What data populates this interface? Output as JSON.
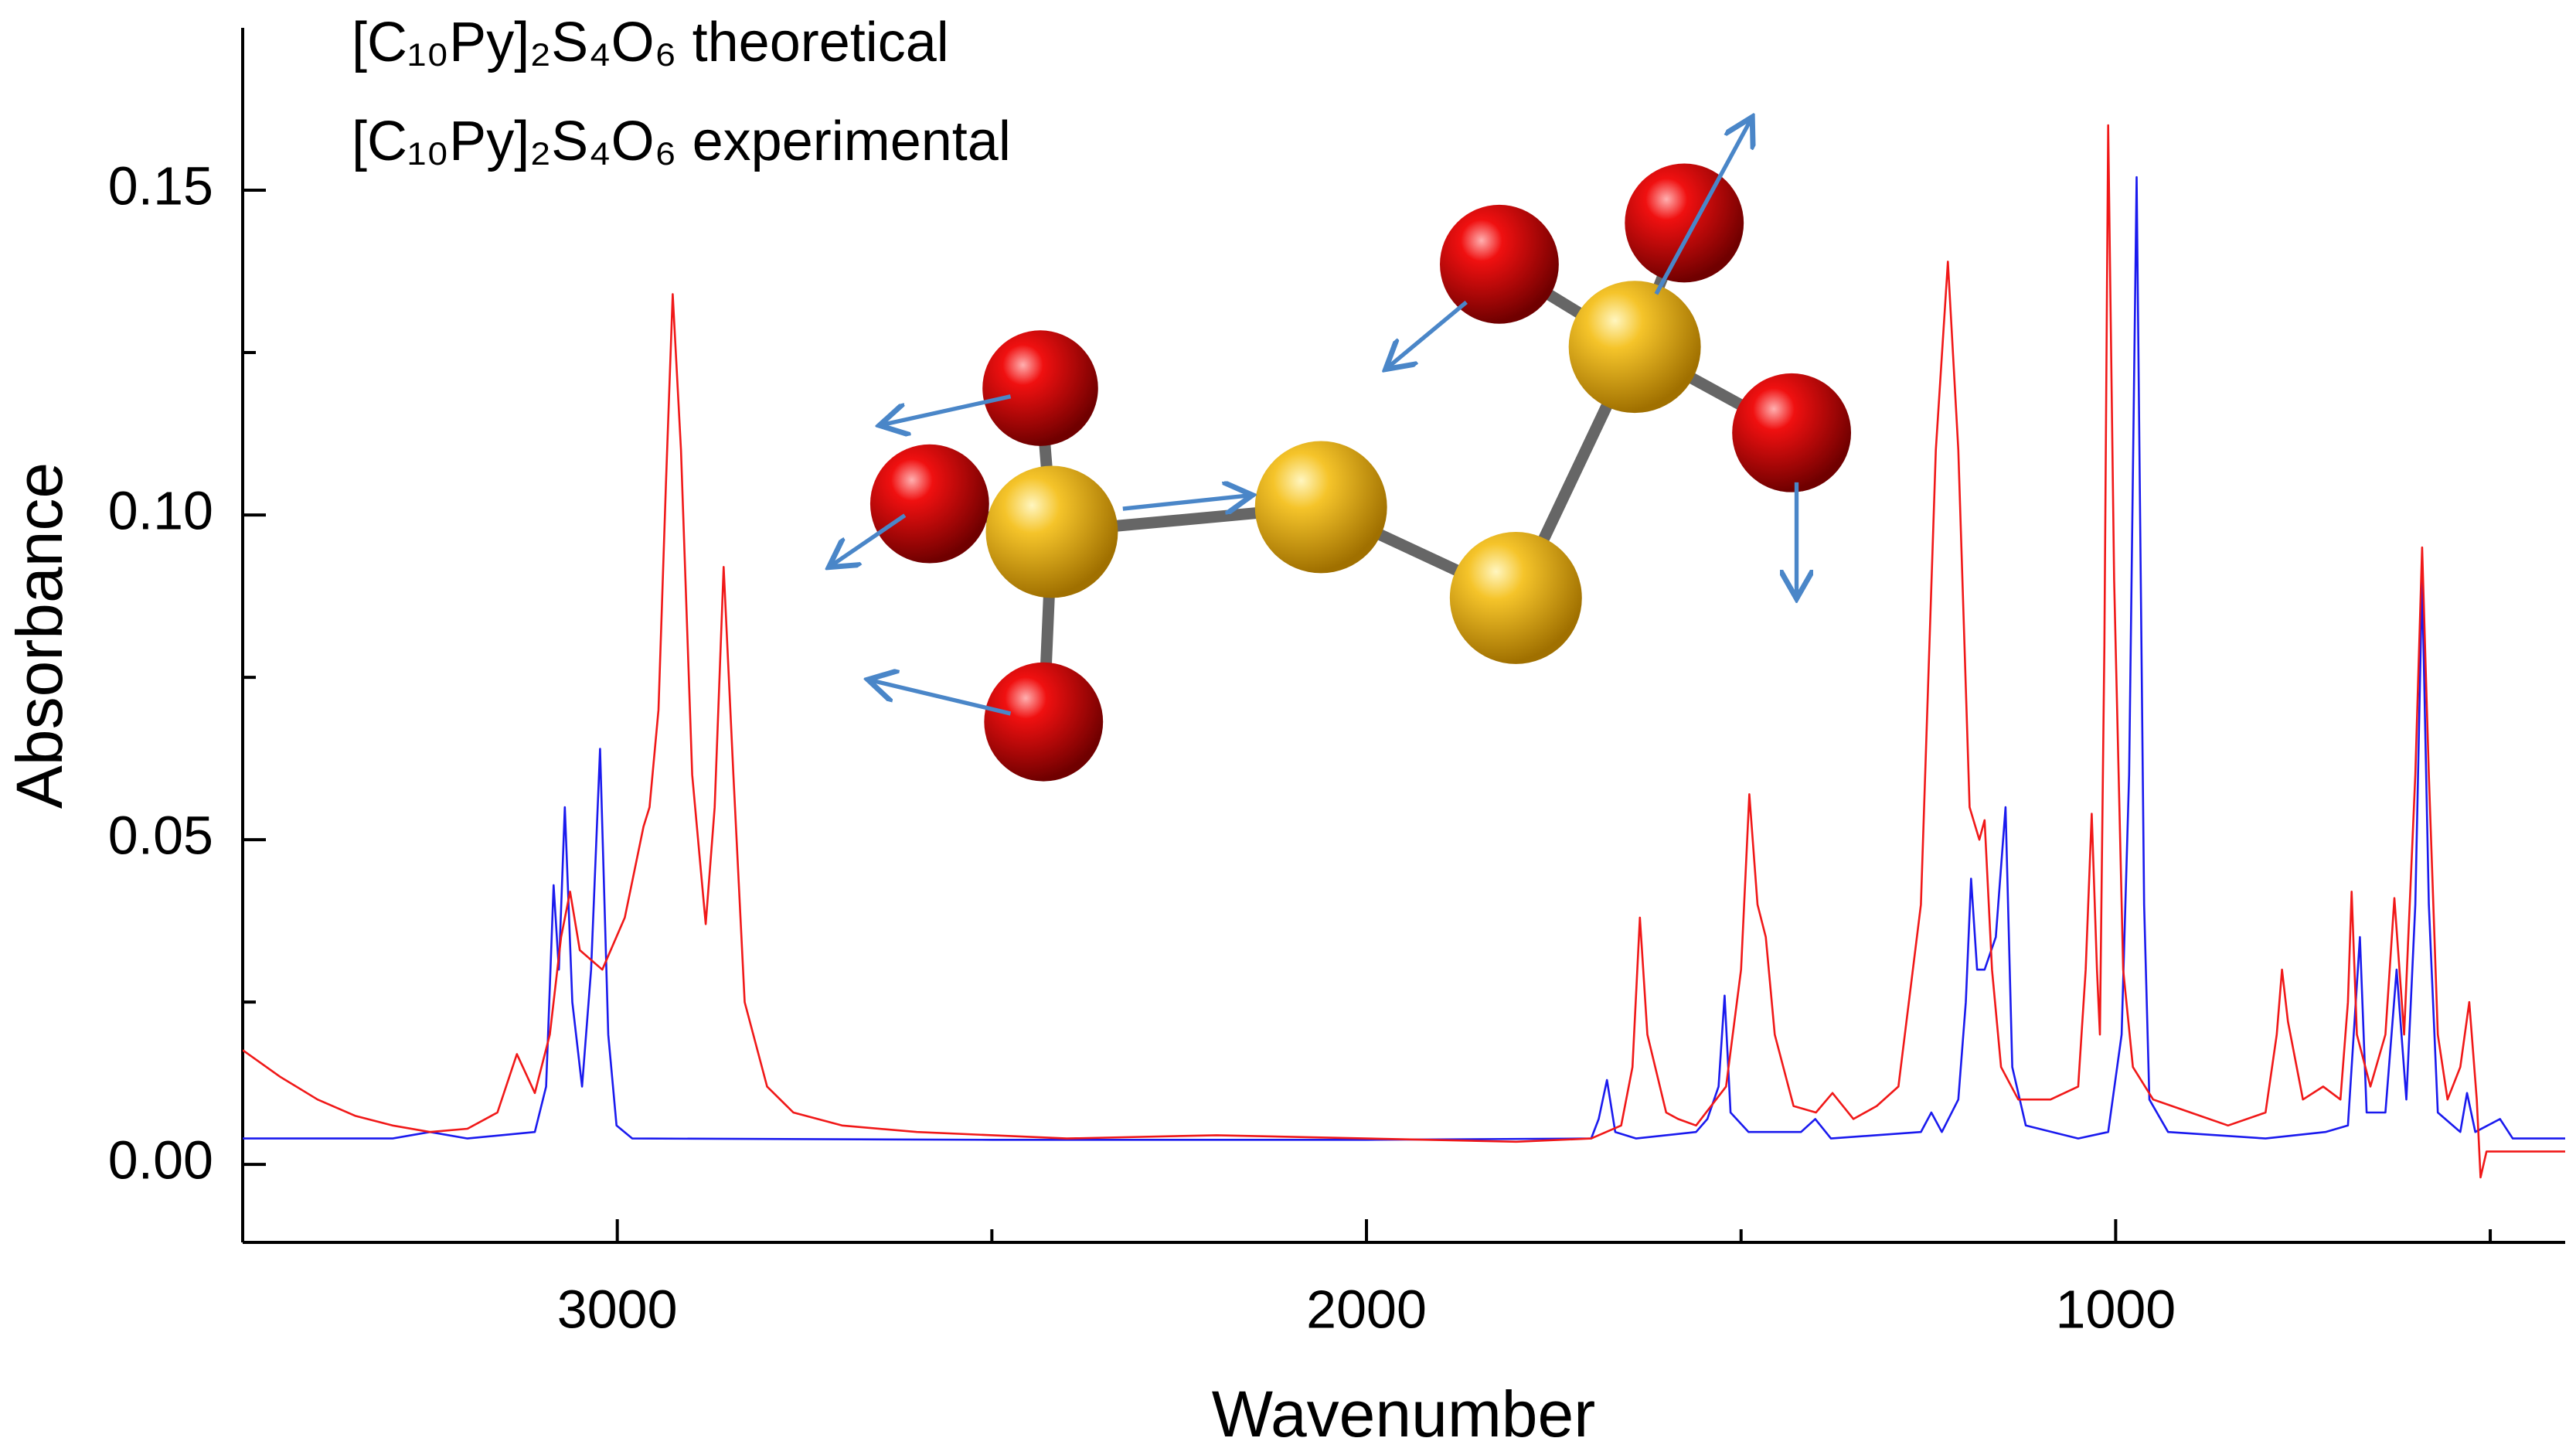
{
  "chart_data": {
    "type": "line",
    "x_label": "Wavenumber",
    "y_label": "Absorbance",
    "xlim": [
      3500,
      400
    ],
    "xticks": [
      3000,
      2000,
      1000
    ],
    "xminor": [
      2500,
      1500,
      500
    ],
    "ylim": [
      -0.012,
      0.175
    ],
    "yticks": [
      {
        "value": 0,
        "label": "0.00"
      },
      0.05,
      {
        "value": 0.1,
        "label": "0.10"
      },
      0.15
    ],
    "yminor": [
      0.025,
      0.075,
      0.125
    ],
    "series": [
      {
        "name": "[C₁₀Py]₂S₄O₆ theoretical",
        "color": "#1a1aee",
        "label_color": "#1f6fc1",
        "x": [
          3500,
          3300,
          3250,
          3200,
          3110,
          3095,
          3085,
          3078,
          3070,
          3060,
          3047,
          3035,
          3023,
          3012,
          3001,
          2980,
          2500,
          2000,
          1700,
          1690,
          1679,
          1668,
          1640,
          1560,
          1545,
          1530,
          1522,
          1514,
          1490,
          1420,
          1401,
          1380,
          1260,
          1246,
          1232,
          1210,
          1200,
          1193,
          1185,
          1175,
          1160,
          1147,
          1138,
          1120,
          1050,
          1010,
          992,
          982,
          972,
          962,
          955,
          930,
          800,
          720,
          690,
          674,
          665,
          640,
          625,
          612,
          600,
          591,
          582,
          570,
          540,
          531,
          520,
          487,
          470,
          400
        ],
        "values": [
          0.004,
          0.004,
          0.005,
          0.004,
          0.005,
          0.012,
          0.043,
          0.03,
          0.055,
          0.025,
          0.012,
          0.03,
          0.064,
          0.02,
          0.006,
          0.004,
          0.0038,
          0.0038,
          0.004,
          0.007,
          0.013,
          0.005,
          0.004,
          0.005,
          0.007,
          0.012,
          0.026,
          0.008,
          0.005,
          0.005,
          0.007,
          0.004,
          0.005,
          0.008,
          0.005,
          0.01,
          0.025,
          0.044,
          0.03,
          0.03,
          0.035,
          0.055,
          0.015,
          0.006,
          0.004,
          0.005,
          0.02,
          0.06,
          0.152,
          0.04,
          0.01,
          0.005,
          0.004,
          0.005,
          0.006,
          0.035,
          0.008,
          0.008,
          0.03,
          0.01,
          0.04,
          0.09,
          0.04,
          0.008,
          0.005,
          0.011,
          0.005,
          0.007,
          0.004,
          0.004
        ]
      },
      {
        "name": "[C₁₀Py]₂S₄O₆ experimental",
        "color": "#f01818",
        "label_color": "#e8141b",
        "x": [
          3500,
          3450,
          3400,
          3350,
          3300,
          3250,
          3200,
          3160,
          3134,
          3110,
          3090,
          3075,
          3063,
          3050,
          3020,
          2990,
          2965,
          2957,
          2945,
          2935,
          2926,
          2915,
          2900,
          2882,
          2870,
          2858,
          2845,
          2830,
          2800,
          2765,
          2700,
          2600,
          2400,
          2200,
          2000,
          1800,
          1700,
          1660,
          1645,
          1635,
          1625,
          1600,
          1584,
          1560,
          1520,
          1500,
          1489,
          1478,
          1467,
          1455,
          1430,
          1400,
          1378,
          1350,
          1319,
          1290,
          1260,
          1240,
          1224,
          1210,
          1195,
          1182,
          1175,
          1165,
          1153,
          1130,
          1087,
          1050,
          1040,
          1032,
          1025,
          1021,
          1015,
          1010,
          1002,
          990,
          977,
          950,
          900,
          850,
          800,
          785,
          778,
          770,
          750,
          723,
          700,
          690,
          685,
          678,
          660,
          640,
          628,
          615,
          600,
          591,
          582,
          570,
          557,
          540,
          528,
          518,
          513,
          505,
          480,
          440,
          400
        ],
        "values": [
          0.0176,
          0.0135,
          0.01,
          0.0075,
          0.006,
          0.005,
          0.0055,
          0.008,
          0.017,
          0.011,
          0.02,
          0.035,
          0.042,
          0.033,
          0.03,
          0.038,
          0.052,
          0.055,
          0.07,
          0.105,
          0.134,
          0.11,
          0.06,
          0.037,
          0.055,
          0.092,
          0.06,
          0.025,
          0.012,
          0.008,
          0.006,
          0.005,
          0.004,
          0.0045,
          0.004,
          0.0035,
          0.004,
          0.006,
          0.015,
          0.038,
          0.02,
          0.008,
          0.007,
          0.006,
          0.012,
          0.03,
          0.057,
          0.04,
          0.035,
          0.02,
          0.009,
          0.008,
          0.011,
          0.007,
          0.009,
          0.012,
          0.04,
          0.11,
          0.139,
          0.11,
          0.055,
          0.05,
          0.053,
          0.03,
          0.015,
          0.01,
          0.01,
          0.012,
          0.03,
          0.054,
          0.03,
          0.02,
          0.08,
          0.16,
          0.09,
          0.03,
          0.015,
          0.01,
          0.008,
          0.006,
          0.008,
          0.02,
          0.03,
          0.022,
          0.01,
          0.012,
          0.01,
          0.025,
          0.042,
          0.02,
          0.012,
          0.02,
          0.041,
          0.02,
          0.06,
          0.095,
          0.06,
          0.02,
          0.01,
          0.015,
          0.025,
          0.01,
          -0.002,
          0.002,
          0.002,
          0.002,
          0.002
        ]
      }
    ]
  }
}
